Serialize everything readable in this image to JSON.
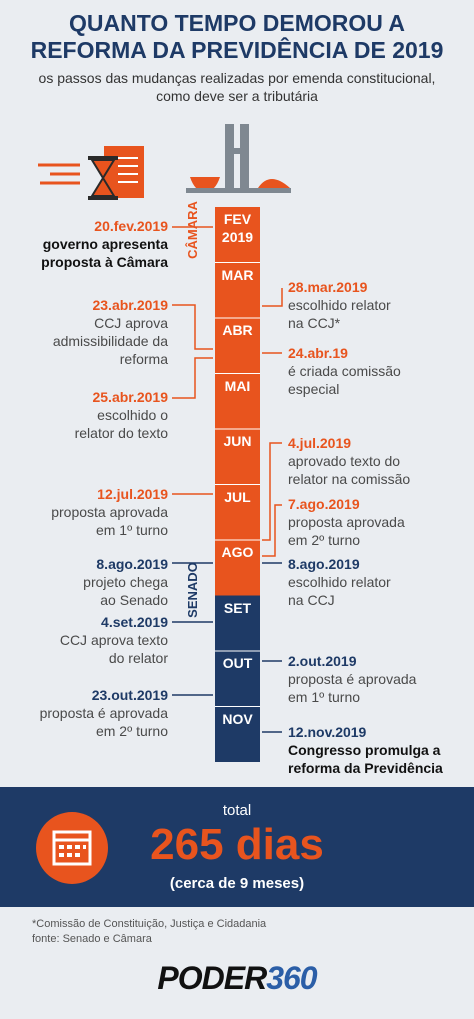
{
  "header": {
    "title_lines": [
      "QUANTO TEMPO DEMOROU A",
      "REFORMA DA PREVIDÊNCIA DE 2019"
    ],
    "subtitle_lines": [
      "os passos das mudanças realizadas por emenda constitucional,",
      "como deve ser a tributária"
    ]
  },
  "houses": [
    "CÂMARA",
    "SENADO"
  ],
  "months": [
    [
      "FEV",
      "2019"
    ],
    [
      "MAR"
    ],
    [
      "ABR"
    ],
    [
      "MAI"
    ],
    [
      "JUN"
    ],
    [
      "JUL"
    ],
    [
      "AGO"
    ],
    [
      "SET"
    ],
    [
      "OUT"
    ],
    [
      "NOV"
    ]
  ],
  "left_events": [
    {
      "date": "20.fev.2019",
      "lines": [
        "governo apresenta",
        "proposta à Câmara"
      ]
    },
    {
      "date": "23.abr.2019",
      "lines": [
        "CCJ aprova",
        "admissibilidade da",
        "reforma"
      ]
    },
    {
      "date": "25.abr.2019",
      "lines": [
        "escolhido o",
        "relator do texto"
      ]
    },
    {
      "date": "12.jul.2019",
      "lines": [
        "proposta aprovada",
        "em 1º turno"
      ]
    },
    {
      "date": "8.ago.2019",
      "lines": [
        "projeto chega",
        "ao Senado"
      ]
    },
    {
      "date": "4.set.2019",
      "lines": [
        "CCJ aprova texto",
        "do relator"
      ]
    },
    {
      "date": "23.out.2019",
      "lines": [
        "proposta é aprovada",
        "em 2º turno"
      ]
    }
  ],
  "right_events": [
    {
      "date": "28.mar.2019",
      "lines": [
        "escolhido relator",
        "na CCJ*"
      ]
    },
    {
      "date": "24.abr.19",
      "lines": [
        "é criada comissão",
        "especial"
      ]
    },
    {
      "date": "4.jul.2019",
      "lines": [
        "aprovado texto do",
        "relator na comissão"
      ]
    },
    {
      "date": "7.ago.2019",
      "lines": [
        "proposta aprovada",
        "em 2º turno"
      ]
    },
    {
      "date": "8.ago.2019",
      "lines": [
        "escolhido relator",
        "na CCJ"
      ]
    },
    {
      "date": "2.out.2019",
      "lines": [
        "proposta é aprovada",
        "em 1º turno"
      ]
    },
    {
      "date": "12.nov.2019",
      "lines": [
        "Congresso promulga a",
        "reforma da Previdência"
      ]
    }
  ],
  "total": {
    "label": "total",
    "value": "265 dias",
    "note": "(cerca de 9 meses)"
  },
  "footnotes": [
    "*Comissão de Constituição, Justiça e Cidadania",
    "fonte: Senado e Câmara"
  ],
  "logo": {
    "main": "PODER",
    "num": "360"
  }
}
